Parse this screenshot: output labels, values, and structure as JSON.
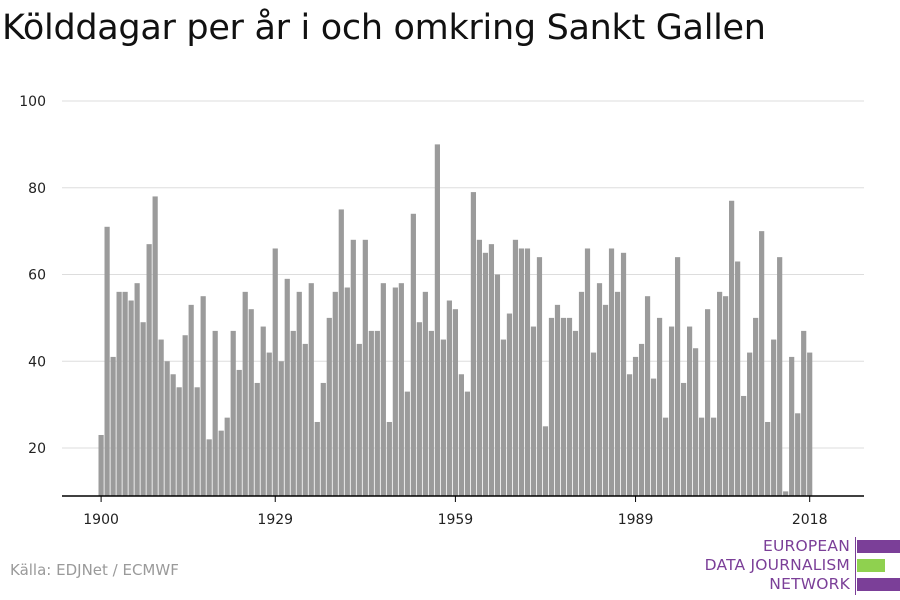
{
  "title": "Kölddagar per år i och omkring Sankt Gallen",
  "source": "Källa: EDJNet / ECMWF",
  "logo": {
    "lines": [
      "EUROPEAN",
      "DATA JOURNALISM",
      "NETWORK"
    ],
    "colors": [
      "#7b3f98",
      "#8fd14f",
      "#7b3f98"
    ]
  },
  "colors": {
    "bar": "#9b9b9b",
    "grid": "#dddddd",
    "axis": "#000000"
  },
  "chart_data": {
    "type": "bar",
    "title": "Kölddagar per år i och omkring Sankt Gallen",
    "xlabel": "",
    "ylabel": "",
    "x_tick_labels": [
      "1900",
      "1929",
      "1959",
      "1989",
      "2018"
    ],
    "y_tick_labels": [
      "20",
      "40",
      "60",
      "80",
      "100"
    ],
    "y_ticks": [
      20,
      40,
      60,
      80,
      100
    ],
    "ylim": [
      9,
      100
    ],
    "grid": true,
    "start_year": 1900,
    "categories": [
      1900,
      1901,
      1902,
      1903,
      1904,
      1905,
      1906,
      1907,
      1908,
      1909,
      1910,
      1911,
      1912,
      1913,
      1914,
      1915,
      1916,
      1917,
      1918,
      1919,
      1920,
      1921,
      1922,
      1923,
      1924,
      1925,
      1926,
      1927,
      1928,
      1929,
      1930,
      1931,
      1932,
      1933,
      1934,
      1935,
      1936,
      1937,
      1938,
      1939,
      1940,
      1941,
      1942,
      1943,
      1944,
      1945,
      1946,
      1947,
      1948,
      1949,
      1950,
      1951,
      1952,
      1953,
      1954,
      1955,
      1956,
      1957,
      1958,
      1959,
      1960,
      1961,
      1962,
      1963,
      1964,
      1965,
      1966,
      1967,
      1968,
      1969,
      1970,
      1971,
      1972,
      1973,
      1974,
      1975,
      1976,
      1977,
      1978,
      1979,
      1980,
      1981,
      1982,
      1983,
      1984,
      1985,
      1986,
      1987,
      1988,
      1989,
      1990,
      1991,
      1992,
      1993,
      1994,
      1995,
      1996,
      1997,
      1998,
      1999,
      2000,
      2001,
      2002,
      2003,
      2004,
      2005,
      2006,
      2007,
      2008,
      2009,
      2010,
      2011,
      2012,
      2013,
      2014,
      2015,
      2016,
      2017,
      2018
    ],
    "values": [
      23,
      71,
      41,
      56,
      56,
      54,
      58,
      49,
      67,
      78,
      45,
      40,
      37,
      34,
      46,
      53,
      34,
      55,
      22,
      47,
      24,
      27,
      47,
      38,
      56,
      52,
      35,
      48,
      42,
      66,
      40,
      59,
      47,
      56,
      44,
      58,
      26,
      35,
      50,
      56,
      75,
      57,
      68,
      44,
      68,
      47,
      47,
      58,
      26,
      57,
      58,
      33,
      74,
      49,
      56,
      47,
      90,
      45,
      54,
      52,
      37,
      33,
      79,
      68,
      65,
      67,
      60,
      45,
      51,
      68,
      66,
      66,
      48,
      64,
      25,
      50,
      53,
      50,
      50,
      47,
      56,
      66,
      42,
      58,
      53,
      66,
      56,
      65,
      37,
      41,
      44,
      55,
      36,
      50,
      27,
      48,
      64,
      35,
      48,
      43,
      27,
      52,
      27,
      56,
      55,
      77,
      63,
      32,
      42,
      50,
      70,
      26,
      45,
      64,
      10,
      41,
      28,
      47,
      42
    ]
  }
}
